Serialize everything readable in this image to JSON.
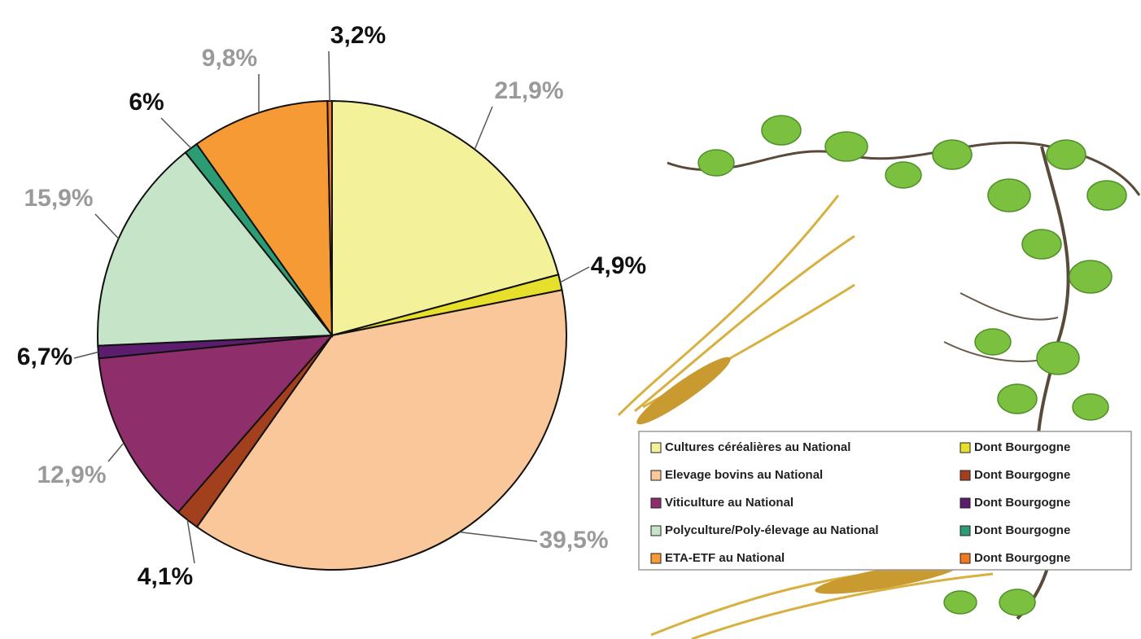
{
  "chart_data": {
    "type": "pie",
    "categories": [
      "Cultures céréalières au National",
      "Elevage bovins au National",
      "Viticulture au National",
      "Polyculture/Poly-élevage au National",
      "ETA-ETF au National"
    ],
    "values": [
      21.9,
      39.5,
      12.9,
      15.9,
      9.8
    ],
    "value_labels": [
      "21,9%",
      "39,5%",
      "12,9%",
      "15,9%",
      "9,8%"
    ],
    "colors": [
      "#f3f19a",
      "#f9c79a",
      "#8e2f6b",
      "#c6e5c8",
      "#f59a34"
    ],
    "sub": {
      "name": "Dont Bourgogne",
      "values": [
        4.9,
        4.1,
        6.7,
        6,
        3.2
      ],
      "value_labels": [
        "4,9%",
        "4,1%",
        "6,7%",
        "6%",
        "3,2%"
      ],
      "colors": [
        "#e6df2c",
        "#a23f1d",
        "#5d1d6e",
        "#2b9c74",
        "#f07a22"
      ]
    }
  }
}
